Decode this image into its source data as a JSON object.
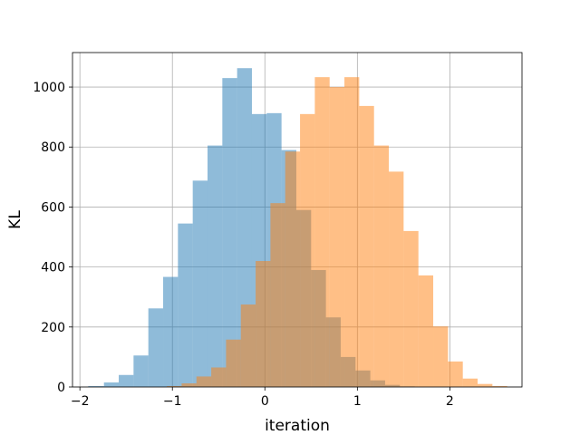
{
  "chart_data": {
    "type": "histogram",
    "xlabel": "iteration",
    "ylabel": "KL",
    "xlim": [
      -2.08,
      2.78
    ],
    "ylim": [
      0,
      1115
    ],
    "grid": true,
    "x_ticks": [
      -2,
      -1,
      0,
      1,
      2
    ],
    "x_tick_labels": [
      "−2",
      "−1",
      "0",
      "1",
      "2"
    ],
    "y_ticks": [
      0,
      200,
      400,
      600,
      800,
      1000
    ],
    "y_tick_labels": [
      "0",
      "200",
      "400",
      "600",
      "800",
      "1000"
    ],
    "series": [
      {
        "color": "#1f77b4",
        "opacity": 0.5,
        "bin_edges": [
          -1.91,
          -1.74,
          -1.58,
          -1.42,
          -1.26,
          -1.1,
          -0.94,
          -0.78,
          -0.62,
          -0.46,
          -0.3,
          -0.14,
          0.02,
          0.18,
          0.34,
          0.5,
          0.66,
          0.82,
          0.98,
          1.14,
          1.3,
          1.46,
          1.62
        ],
        "counts": [
          3,
          15,
          40,
          105,
          262,
          367,
          545,
          688,
          805,
          1030,
          1063,
          910,
          913,
          790,
          590,
          390,
          232,
          100,
          55,
          22,
          7,
          2
        ]
      },
      {
        "color": "#ff7f0e",
        "opacity": 0.5,
        "bin_edges": [
          -1.06,
          -0.9,
          -0.74,
          -0.58,
          -0.42,
          -0.26,
          -0.1,
          0.06,
          0.22,
          0.38,
          0.54,
          0.7,
          0.86,
          1.02,
          1.18,
          1.34,
          1.5,
          1.66,
          1.82,
          1.98,
          2.14,
          2.3,
          2.46,
          2.62
        ],
        "counts": [
          3,
          12,
          35,
          65,
          158,
          275,
          420,
          613,
          785,
          910,
          1033,
          1000,
          1033,
          937,
          805,
          718,
          520,
          372,
          202,
          85,
          28,
          10,
          3
        ]
      }
    ]
  }
}
